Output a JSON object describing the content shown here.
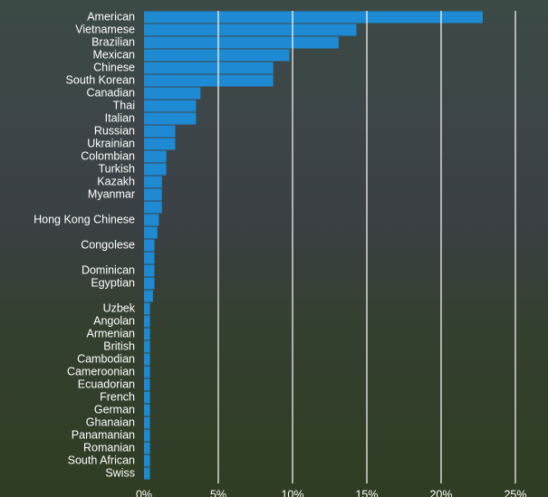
{
  "chart_data": {
    "type": "hbar",
    "color": "#1f8ad4",
    "grid": true,
    "categories": [
      "American",
      "Vietnamese",
      "Brazilian",
      "Mexican",
      "Chinese",
      "South Korean",
      "Canadian",
      "Thai",
      "Italian",
      "Russian",
      "Ukrainian",
      "Colombian",
      "Turkish",
      "Kazakh",
      "Myanmar",
      null,
      "Hong Kong Chinese",
      null,
      "Congolese",
      null,
      "Dominican",
      "Egyptian",
      null,
      "Uzbek",
      "Angolan",
      "Armenian",
      "British",
      "Cambodian",
      "Cameroonian",
      "Ecuadorian",
      "French",
      "German",
      "Ghanaian",
      "Panamanian",
      "Romanian",
      "South African",
      "Swiss"
    ],
    "values": [
      22.8,
      14.3,
      13.1,
      9.8,
      8.7,
      8.7,
      3.8,
      3.5,
      3.5,
      2.1,
      2.1,
      1.5,
      1.5,
      1.2,
      1.2,
      1.2,
      1.0,
      0.9,
      0.7,
      0.7,
      0.7,
      0.7,
      0.6,
      0.4,
      0.4,
      0.4,
      0.4,
      0.4,
      0.4,
      0.4,
      0.4,
      0.4,
      0.4,
      0.4,
      0.4,
      0.4,
      0.4
    ],
    "xlim": [
      0,
      25
    ],
    "xticks": [
      {
        "value": 0,
        "label": "0%"
      },
      {
        "value": 5,
        "label": "5%"
      },
      {
        "value": 10,
        "label": "10%"
      },
      {
        "value": 15,
        "label": "15%"
      },
      {
        "value": 20,
        "label": "20%"
      },
      {
        "value": 25,
        "label": "25%"
      }
    ]
  }
}
